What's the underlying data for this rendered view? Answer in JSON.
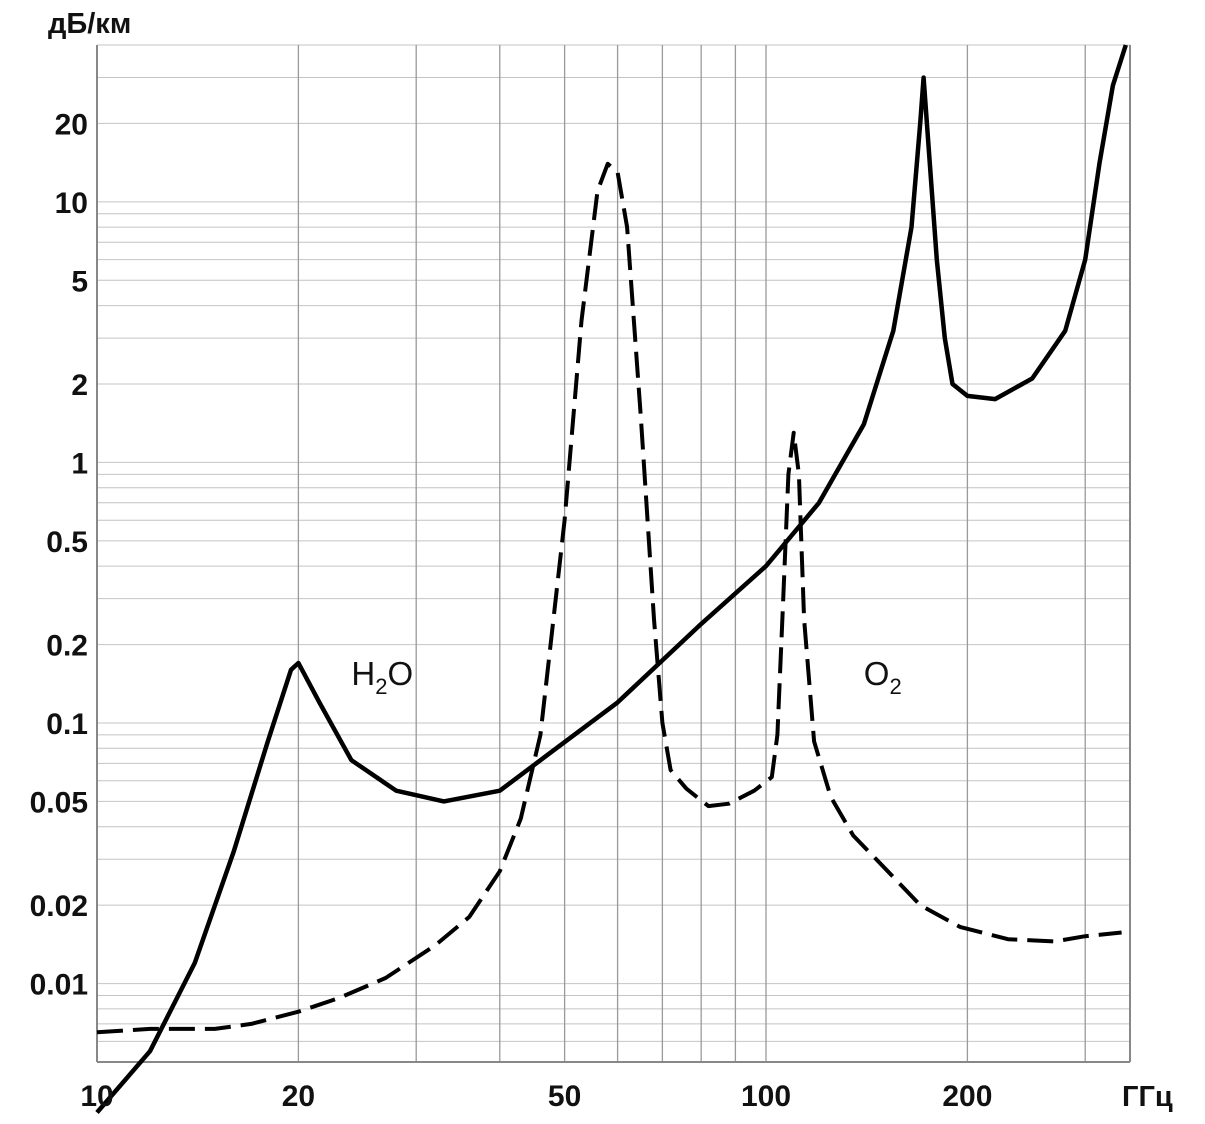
{
  "chart_data": {
    "type": "line",
    "title": "",
    "xlabel": "ГГц",
    "ylabel": "дБ/км",
    "x_scale": "log",
    "y_scale": "log",
    "xlim": [
      10,
      350
    ],
    "ylim": [
      0.005,
      40
    ],
    "grid": true,
    "x_ticks": [
      {
        "value": 10,
        "label": "10"
      },
      {
        "value": 20,
        "label": "20"
      },
      {
        "value": 50,
        "label": "50"
      },
      {
        "value": 100,
        "label": "100"
      },
      {
        "value": 200,
        "label": "200"
      }
    ],
    "y_ticks": [
      {
        "value": 0.01,
        "label": "0.01"
      },
      {
        "value": 0.02,
        "label": "0.02"
      },
      {
        "value": 0.05,
        "label": "0.05"
      },
      {
        "value": 0.1,
        "label": "0.1"
      },
      {
        "value": 0.2,
        "label": "0.2"
      },
      {
        "value": 0.5,
        "label": "0.5"
      },
      {
        "value": 1,
        "label": "1"
      },
      {
        "value": 2,
        "label": "2"
      },
      {
        "value": 5,
        "label": "5"
      },
      {
        "value": 10,
        "label": "10"
      },
      {
        "value": 20,
        "label": "20"
      }
    ],
    "series": [
      {
        "name": "H2O",
        "label_main": "H",
        "label_sub": "2",
        "label_tail": "O",
        "label_at": [
          24,
          0.14
        ],
        "style": "solid",
        "points": [
          [
            10,
            0.0032
          ],
          [
            12,
            0.0055
          ],
          [
            14,
            0.012
          ],
          [
            16,
            0.032
          ],
          [
            18,
            0.085
          ],
          [
            19.5,
            0.16
          ],
          [
            20,
            0.17
          ],
          [
            21.5,
            0.12
          ],
          [
            24,
            0.072
          ],
          [
            28,
            0.055
          ],
          [
            33,
            0.05
          ],
          [
            40,
            0.055
          ],
          [
            47,
            0.075
          ],
          [
            60,
            0.12
          ],
          [
            80,
            0.24
          ],
          [
            100,
            0.4
          ],
          [
            120,
            0.7
          ],
          [
            140,
            1.4
          ],
          [
            155,
            3.2
          ],
          [
            165,
            8
          ],
          [
            170,
            20
          ],
          [
            172,
            30
          ],
          [
            174,
            20
          ],
          [
            180,
            6
          ],
          [
            185,
            3
          ],
          [
            190,
            2.0
          ],
          [
            200,
            1.8
          ],
          [
            220,
            1.75
          ],
          [
            250,
            2.1
          ],
          [
            280,
            3.2
          ],
          [
            300,
            6
          ],
          [
            315,
            14
          ],
          [
            330,
            28
          ],
          [
            345,
            40
          ]
        ]
      },
      {
        "name": "O2",
        "label_main": "O",
        "label_sub": "2",
        "label_tail": "",
        "label_at": [
          140,
          0.14
        ],
        "style": "dashed",
        "points": [
          [
            10,
            0.0065
          ],
          [
            12,
            0.0067
          ],
          [
            15,
            0.0067
          ],
          [
            17,
            0.007
          ],
          [
            20,
            0.0078
          ],
          [
            23,
            0.0088
          ],
          [
            27,
            0.0105
          ],
          [
            32,
            0.014
          ],
          [
            36,
            0.018
          ],
          [
            40,
            0.027
          ],
          [
            43,
            0.043
          ],
          [
            46,
            0.09
          ],
          [
            50,
            0.6
          ],
          [
            53,
            3.5
          ],
          [
            56,
            11
          ],
          [
            58,
            14
          ],
          [
            60,
            13
          ],
          [
            62,
            8
          ],
          [
            65,
            1.5
          ],
          [
            68,
            0.25
          ],
          [
            70,
            0.1
          ],
          [
            72,
            0.066
          ],
          [
            76,
            0.056
          ],
          [
            82,
            0.048
          ],
          [
            88,
            0.049
          ],
          [
            96,
            0.055
          ],
          [
            102,
            0.062
          ],
          [
            104,
            0.09
          ],
          [
            106,
            0.28
          ],
          [
            108,
            0.9
          ],
          [
            110,
            1.3
          ],
          [
            112,
            0.9
          ],
          [
            114,
            0.25
          ],
          [
            118,
            0.085
          ],
          [
            125,
            0.052
          ],
          [
            135,
            0.037
          ],
          [
            150,
            0.028
          ],
          [
            170,
            0.02
          ],
          [
            195,
            0.0165
          ],
          [
            230,
            0.0148
          ],
          [
            270,
            0.0145
          ],
          [
            300,
            0.0152
          ],
          [
            340,
            0.0157
          ]
        ]
      }
    ]
  }
}
